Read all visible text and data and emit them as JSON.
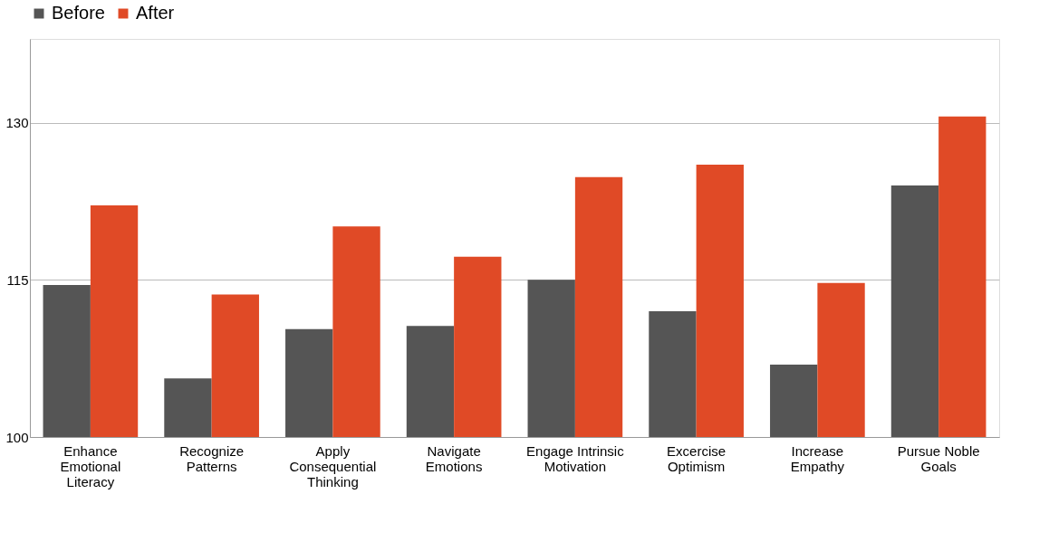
{
  "chart_data": {
    "type": "bar",
    "categories": [
      "Enhance\nEmotional\nLiteracy",
      "Recognize\nPatterns",
      "Apply\nConsequential\nThinking",
      "Navigate\nEmotions",
      "Engage Intrinsic\nMotivation",
      "Excercise\nOptimism",
      "Increase\nEmpathy",
      "Pursue Noble\nGoals"
    ],
    "series": [
      {
        "name": "Before",
        "color": "#555555",
        "values": [
          114.5,
          105.6,
          110.3,
          110.6,
          115,
          112,
          106.9,
          124
        ]
      },
      {
        "name": "After",
        "color": "#e04a26",
        "values": [
          122.1,
          113.6,
          120.1,
          117.2,
          124.8,
          126,
          114.7,
          130.6
        ]
      }
    ],
    "ylim": [
      100,
      138
    ],
    "yticks": [
      100,
      115,
      130
    ],
    "grid": "y",
    "legend": "top"
  }
}
